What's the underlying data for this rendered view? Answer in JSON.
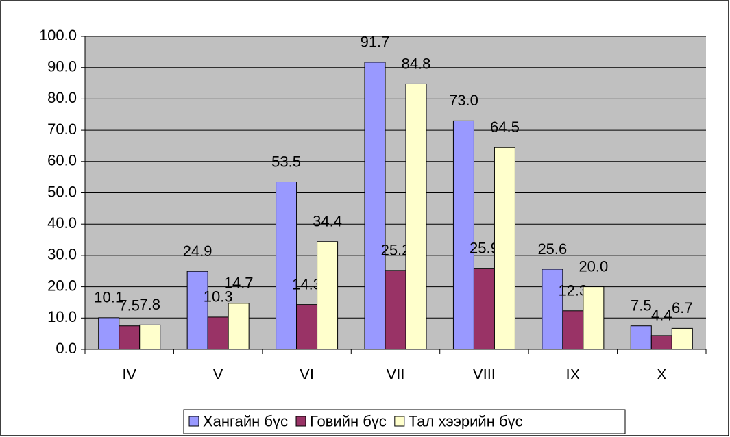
{
  "chart_data": {
    "type": "bar",
    "categories": [
      "IV",
      "V",
      "VI",
      "VII",
      "VIII",
      "IX",
      "X"
    ],
    "series": [
      {
        "name": "Хангайн бүс",
        "color": "#9999ff",
        "values": [
          10.1,
          24.9,
          53.5,
          91.7,
          73.0,
          25.6,
          7.5
        ],
        "value_labels": [
          "10.1",
          "24.9",
          "53.5",
          "91.7",
          "73.0",
          "25.6",
          "7.5"
        ]
      },
      {
        "name": "Говийн бүс",
        "color": "#993366",
        "values": [
          7.5,
          10.3,
          14.3,
          25.2,
          25.9,
          12.3,
          4.4
        ],
        "value_labels": [
          "7.5",
          "10.3",
          "14.3",
          "25.2",
          "25.9",
          "12.3",
          "4.4"
        ]
      },
      {
        "name": "Тал хээрийн бүс",
        "color": "#ffffcc",
        "values": [
          7.8,
          14.7,
          34.4,
          84.8,
          64.5,
          20.0,
          6.7
        ],
        "value_labels": [
          "7.8",
          "14.7",
          "34.4",
          "84.8",
          "64.5",
          "20.0",
          "6.7"
        ]
      }
    ],
    "ylim": [
      0,
      100
    ],
    "yticks": [
      {
        "value": 0,
        "label": "0.0"
      },
      {
        "value": 10,
        "label": "10.0"
      },
      {
        "value": 20,
        "label": "20.0"
      },
      {
        "value": 30,
        "label": "30.0"
      },
      {
        "value": 40,
        "label": "40.0"
      },
      {
        "value": 50,
        "label": "50.0"
      },
      {
        "value": 60,
        "label": "60.0"
      },
      {
        "value": 70,
        "label": "70.0"
      },
      {
        "value": 80,
        "label": "80.0"
      },
      {
        "value": 90,
        "label": "90.0"
      },
      {
        "value": 100,
        "label": "100.0"
      }
    ],
    "grid": true,
    "legend": "bottom",
    "plot_background": "#c0c0c0"
  }
}
